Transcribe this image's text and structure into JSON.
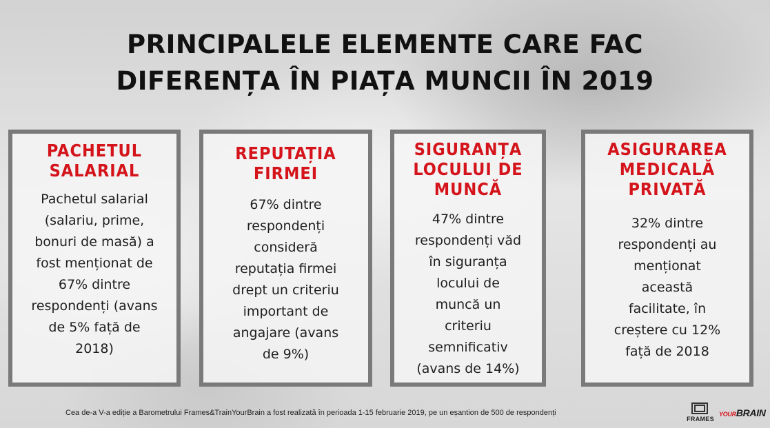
{
  "title": {
    "line1": "PRINCIPALELE ELEMENTE CARE FAC",
    "line2": "DIFERENȚA ÎN PIAȚA MUNCII ÎN 2019"
  },
  "cards": [
    {
      "title": [
        "PACHETUL",
        "SALARIAL"
      ],
      "body": [
        "Pachetul salarial",
        "(salariu, prime,",
        "bonuri de masă) a",
        "fost menționat de",
        "67% dintre",
        "respondenți (avans",
        "de 5% față de",
        "2018)"
      ]
    },
    {
      "title": [
        "REPUTAȚIA",
        "FIRMEI"
      ],
      "body": [
        "67% dintre",
        "respondenți",
        "consideră",
        "reputația firmei",
        "drept un criteriu",
        "important de",
        "angajare (avans",
        "de 9%)"
      ]
    },
    {
      "title": [
        "SIGURANȚA",
        "LOCULUI DE",
        "MUNCĂ"
      ],
      "body": [
        "47% dintre",
        "respondenți văd",
        "în siguranța",
        "locului de",
        "muncă un",
        "criteriu",
        "semnificativ",
        "(avans de 14%)"
      ]
    },
    {
      "title": [
        "ASIGURAREA",
        "MEDICALĂ",
        "PRIVATĂ"
      ],
      "body": [
        "32% dintre",
        "respondenți au",
        "menționat",
        "această",
        "facilitate, în",
        "creștere cu 12%",
        "față de 2018"
      ]
    }
  ],
  "footnote": "Cea de-a V-a ediție a Barometrului Frames&TrainYourBrain a fost realizată în perioada 1-15 februarie 2019, pe un eșantion de 500 de respondenți",
  "logos": {
    "frames": "FRAMES",
    "your": "YOUR",
    "brain": "BRAIN"
  },
  "colors": {
    "accent": "#d4131a",
    "card_border": "#7a7a7a",
    "text": "#1e1e1e"
  }
}
